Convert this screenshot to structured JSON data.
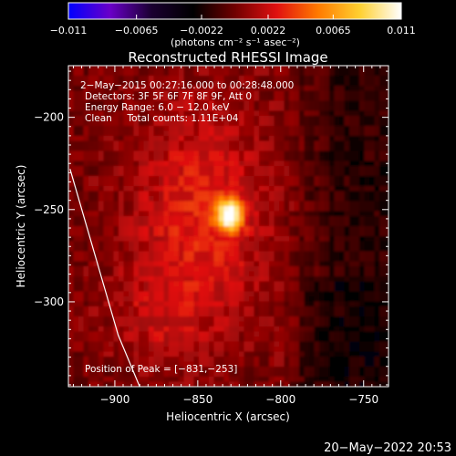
{
  "chart_data": {
    "type": "heatmap",
    "title": "Reconstructed RHESSI Image",
    "xlabel": "Heliocentric X (arcsec)",
    "ylabel": "Heliocentric Y (arcsec)",
    "xlim": [
      -928,
      -735
    ],
    "ylim": [
      -346,
      -172
    ],
    "xticks": [
      -900,
      -850,
      -800,
      -750
    ],
    "yticks": [
      -200,
      -250,
      -300
    ],
    "xtick_labels": [
      "−900",
      "−850",
      "−800",
      "−750"
    ],
    "ytick_labels": [
      "−200",
      "−250",
      "−300"
    ],
    "colorbar": {
      "min": -0.011,
      "max": 0.011,
      "ticks": [
        -0.011,
        -0.0065,
        -0.0022,
        0.0022,
        0.0065,
        0.011
      ],
      "tick_labels": [
        "−0.011",
        "−0.0065",
        "−0.0022",
        "0.0022",
        "0.0065",
        "0.011"
      ],
      "unit_label": "(photons cm⁻² s⁻¹ asec⁻²)",
      "colors": [
        "#0000ff",
        "#6a00c8",
        "#1a0030",
        "#000000",
        "#700000",
        "#e01010",
        "#ff7a00",
        "#ffd030",
        "#ffffff"
      ]
    },
    "annotations": [
      "2−May−2015 00:27:16.000 to 00:28:48.000",
      "Detectors: 3F 5F 6F 7F 8F 9F, Att 0",
      "Energy Range: 6.0 − 12.0 keV",
      "Clean     Total counts: 1.11E+04"
    ],
    "peak_label": "Position of Peak = [−831,−253]",
    "peak": {
      "x": -831,
      "y": -253,
      "value": 0.011
    },
    "limb_curve": {
      "x": [
        -927,
        -898,
        -885
      ],
      "y": [
        -228,
        -318,
        -346
      ]
    },
    "grid": false
  },
  "footer": {
    "timestamp": "20−May−2022 20:53"
  }
}
